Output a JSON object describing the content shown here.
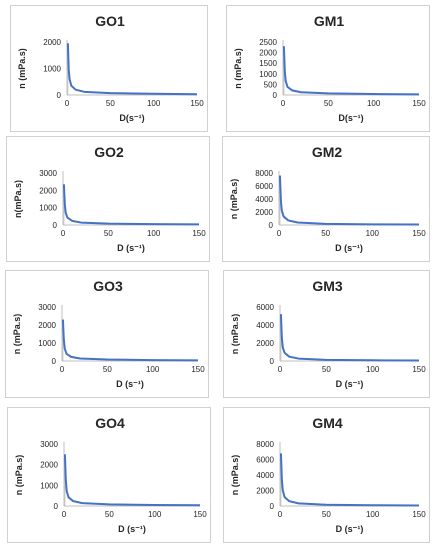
{
  "chart_data": [
    {
      "type": "line",
      "title": "GO1",
      "xlabel": "D(s⁻¹)",
      "ylabel": "n (mPa.s)",
      "xlim": [
        0,
        150
      ],
      "ylim": [
        0,
        2000
      ],
      "x_ticks": [
        "0",
        "50",
        "100",
        "150"
      ],
      "y_ticks": [
        "0",
        "1000",
        "2000"
      ],
      "series": [
        {
          "x": [
            1,
            2,
            3,
            5,
            10,
            20,
            50,
            100,
            150
          ],
          "y": [
            1950,
            950,
            600,
            350,
            200,
            120,
            70,
            45,
            30
          ]
        }
      ]
    },
    {
      "type": "line",
      "title": "GM1",
      "xlabel": "D(s⁻¹)",
      "ylabel": "n (mPa.s)",
      "xlim": [
        0,
        150
      ],
      "ylim": [
        0,
        2500
      ],
      "x_ticks": [
        "0",
        "50",
        "100",
        "150"
      ],
      "y_ticks": [
        "0",
        "500",
        "1000",
        "1500",
        "2000",
        "2500"
      ],
      "series": [
        {
          "x": [
            1,
            2,
            3,
            5,
            10,
            20,
            50,
            100,
            150
          ],
          "y": [
            2300,
            1100,
            650,
            380,
            220,
            130,
            75,
            45,
            30
          ]
        }
      ]
    },
    {
      "type": "line",
      "title": "GO2",
      "xlabel": "D (s⁻¹)",
      "ylabel": "n(mPa.s)",
      "xlim": [
        0,
        150
      ],
      "ylim": [
        0,
        3000
      ],
      "x_ticks": [
        "0",
        "50",
        "100",
        "150"
      ],
      "y_ticks": [
        "0",
        "1000",
        "2000",
        "3000"
      ],
      "series": [
        {
          "x": [
            1,
            2,
            3,
            5,
            10,
            20,
            50,
            100,
            150
          ],
          "y": [
            2350,
            1200,
            700,
            420,
            240,
            140,
            80,
            50,
            35
          ]
        }
      ]
    },
    {
      "type": "line",
      "title": "GM2",
      "xlabel": "D (s⁻¹)",
      "ylabel": "n (mPa.s)",
      "xlim": [
        0,
        150
      ],
      "ylim": [
        0,
        8000
      ],
      "x_ticks": [
        "0",
        "50",
        "100",
        "150"
      ],
      "y_ticks": [
        "0",
        "2000",
        "4000",
        "6000",
        "8000"
      ],
      "series": [
        {
          "x": [
            1,
            2,
            3,
            5,
            10,
            20,
            50,
            100,
            150
          ],
          "y": [
            7600,
            3800,
            2200,
            1300,
            700,
            380,
            180,
            100,
            70
          ]
        }
      ]
    },
    {
      "type": "line",
      "title": "GO3",
      "xlabel": "D (s⁻¹)",
      "ylabel": "n (mPa.s)",
      "xlim": [
        0,
        150
      ],
      "ylim": [
        0,
        3000
      ],
      "x_ticks": [
        "0",
        "50",
        "100",
        "150"
      ],
      "y_ticks": [
        "0",
        "1000",
        "2000",
        "3000"
      ],
      "series": [
        {
          "x": [
            1,
            2,
            3,
            5,
            10,
            20,
            50,
            100,
            150
          ],
          "y": [
            2300,
            1200,
            700,
            400,
            230,
            140,
            80,
            50,
            35
          ]
        }
      ]
    },
    {
      "type": "line",
      "title": "GM3",
      "xlabel": "D (s⁻¹)",
      "ylabel": "n (mPa.s)",
      "xlim": [
        0,
        150
      ],
      "ylim": [
        0,
        6000
      ],
      "x_ticks": [
        "0",
        "50",
        "100",
        "150"
      ],
      "y_ticks": [
        "0",
        "2000",
        "4000",
        "6000"
      ],
      "series": [
        {
          "x": [
            1,
            2,
            3,
            5,
            10,
            20,
            50,
            100,
            150
          ],
          "y": [
            5200,
            2600,
            1500,
            900,
            480,
            270,
            130,
            80,
            55
          ]
        }
      ]
    },
    {
      "type": "line",
      "title": "GO4",
      "xlabel": "D (s⁻¹)",
      "ylabel": "n (mPa.s)",
      "xlim": [
        0,
        150
      ],
      "ylim": [
        0,
        3000
      ],
      "x_ticks": [
        "0",
        "50",
        "100",
        "150"
      ],
      "y_ticks": [
        "0",
        "1000",
        "2000",
        "3000"
      ],
      "series": [
        {
          "x": [
            1,
            2,
            3,
            5,
            10,
            20,
            50,
            100,
            150
          ],
          "y": [
            2500,
            1250,
            720,
            420,
            240,
            140,
            80,
            50,
            35
          ]
        }
      ]
    },
    {
      "type": "line",
      "title": "GM4",
      "xlabel": "D (s⁻¹)",
      "ylabel": "n (mPa.s)",
      "xlim": [
        0,
        150
      ],
      "ylim": [
        0,
        8000
      ],
      "x_ticks": [
        "0",
        "50",
        "100",
        "150"
      ],
      "y_ticks": [
        "0",
        "2000",
        "4000",
        "6000",
        "8000"
      ],
      "series": [
        {
          "x": [
            1,
            2,
            3,
            5,
            10,
            20,
            50,
            100,
            150
          ],
          "y": [
            6800,
            3400,
            2000,
            1150,
            620,
            340,
            160,
            95,
            65
          ]
        }
      ]
    }
  ],
  "colors": {
    "line": "#4472C4",
    "axis": "#bfbfbf",
    "text": "#262626"
  }
}
